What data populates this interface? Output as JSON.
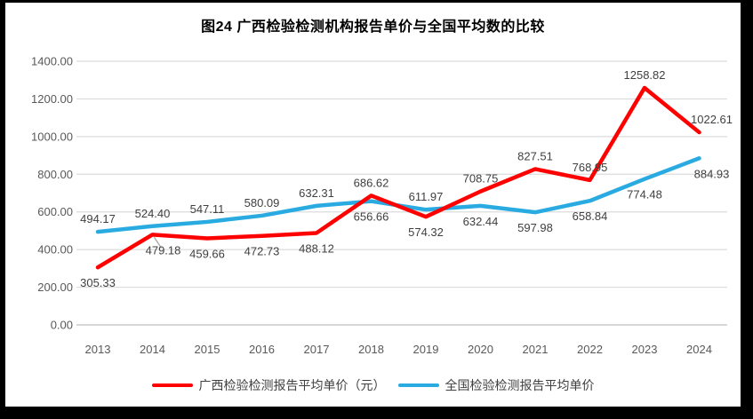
{
  "chart_data": {
    "type": "line",
    "title": "图24  广西检验检测机构报告单价与全国平均数的比较",
    "categories": [
      "2013",
      "2014",
      "2015",
      "2016",
      "2017",
      "2018",
      "2019",
      "2020",
      "2021",
      "2022",
      "2023",
      "2024"
    ],
    "series": [
      {
        "id": "guangxi",
        "name": "广西检验检测报告平均单价（元）",
        "color": "#FF0000",
        "values": [
          305.33,
          479.18,
          459.66,
          472.73,
          488.12,
          686.62,
          574.32,
          708.75,
          827.51,
          768.95,
          1258.82,
          1022.61
        ]
      },
      {
        "id": "national",
        "name": "全国检验检测报告平均单价",
        "color": "#29ABE2",
        "values": [
          494.17,
          524.4,
          547.11,
          580.09,
          632.31,
          656.66,
          611.97,
          632.44,
          597.98,
          658.84,
          774.48,
          884.93
        ]
      }
    ],
    "y_axis": {
      "min": 0,
      "max": 1400,
      "step": 200,
      "tick_labels": [
        "0.00",
        "200.00",
        "400.00",
        "600.00",
        "800.00",
        "1000.00",
        "1200.00",
        "1400.00"
      ]
    },
    "grid": true,
    "legend_position": "bottom",
    "data_labels": true,
    "callouts": [
      {
        "series": 0,
        "index": 1
      }
    ],
    "colors": {
      "gridline": "#DCDCDC",
      "zero_line": "#BFBFBF",
      "axis_text": "#595959",
      "label_text": "#404040",
      "leader_line": "#A6A6A6",
      "background": "#FFFFFF",
      "frame": "#000000"
    }
  }
}
